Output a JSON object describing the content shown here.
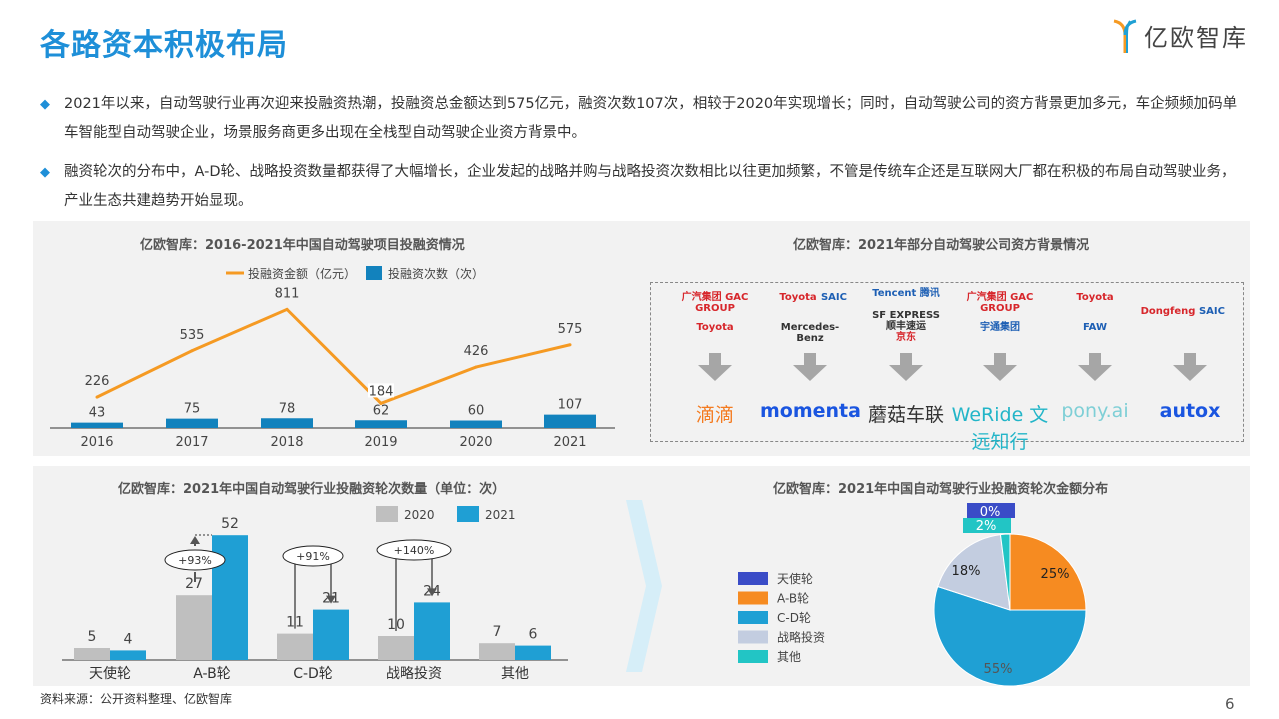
{
  "title": "各路资本积极布局",
  "brand": "亿欧智库",
  "bullets": [
    "2021年以来，自动驾驶行业再次迎来投融资热潮，投融资总金额达到575亿元，融资次数107次，相较于2020年实现增长；同时，自动驾驶公司的资方背景更加多元，车企频频加码单车智能型自动驾驶企业，场景服务商更多出现在全栈型自动驾驶企业资方背景中。",
    "融资轮次的分布中，A-D轮、战略投资数量都获得了大幅增长，企业发起的战略并购与战略投资次数相比以往更加频繁，不管是传统车企还是互联网大厂都在积极的布局自动驾驶业务，产业生态共建趋势开始显现。"
  ],
  "investors_panel": {
    "title": "亿欧智库：2021年部分自动驾驶公司资方背景情况",
    "columns": [
      {
        "investors": [
          "广汽集团 GAC GROUP",
          "Toyota"
        ],
        "company": "滴滴"
      },
      {
        "investors": [
          "Toyota",
          "SAIC",
          "Mercedes-Benz"
        ],
        "company": "momenta"
      },
      {
        "investors": [
          "Tencent 腾讯",
          "SF EXPRESS 顺丰速运",
          "京东"
        ],
        "company": "蘑菇车联"
      },
      {
        "investors": [
          "广汽集团 GAC GROUP",
          "宇通集团"
        ],
        "company": "WeRide 文远知行"
      },
      {
        "investors": [
          "Toyota",
          "FAW"
        ],
        "company": "pony.ai"
      },
      {
        "investors": [
          "Dongfeng",
          "SAIC"
        ],
        "company": "autox"
      }
    ],
    "arrow_color": "#a6a6a6"
  },
  "source": "资料来源：公开资料整理、亿欧智库",
  "page_number": "6",
  "chart_data": [
    {
      "type": "bar+line",
      "title": "亿欧智库：2016-2021年中国自动驾驶项目投融资情况",
      "categories": [
        "2016",
        "2017",
        "2018",
        "2019",
        "2020",
        "2021"
      ],
      "series": [
        {
          "name": "投融资金额（亿元）",
          "type": "line",
          "color": "#f59a23",
          "values": [
            226,
            535,
            811,
            184,
            426,
            575
          ]
        },
        {
          "name": "投融资次数（次）",
          "type": "bar",
          "color": "#1282bd",
          "values": [
            43,
            75,
            78,
            62,
            60,
            107
          ]
        }
      ],
      "legend": "top"
    },
    {
      "type": "bar",
      "title": "亿欧智库：2021年中国自动驾驶行业投融资轮次数量（单位：次）",
      "categories": [
        "天使轮",
        "A-B轮",
        "C-D轮",
        "战略投资",
        "其他"
      ],
      "series": [
        {
          "name": "2020",
          "color": "#bfbfbf",
          "values": [
            5,
            27,
            11,
            10,
            7
          ]
        },
        {
          "name": "2021",
          "color": "#1f9fd4",
          "values": [
            4,
            52,
            21,
            24,
            6
          ]
        }
      ],
      "annotations": [
        {
          "category": "A-B轮",
          "text": "+93%"
        },
        {
          "category": "C-D轮",
          "text": "+91%"
        },
        {
          "category": "战略投资",
          "text": "+140%"
        }
      ],
      "legend": "top-right"
    },
    {
      "type": "pie",
      "title": "亿欧智库：2021年中国自动驾驶行业投融资轮次金额分布",
      "slices": [
        {
          "label": "天使轮",
          "value": 0,
          "display": "0%",
          "color": "#3a4cc7"
        },
        {
          "label": "A-B轮",
          "value": 25,
          "display": "25%",
          "color": "#f68b21"
        },
        {
          "label": "C-D轮",
          "value": 55,
          "display": "55%",
          "color": "#1fa0d4"
        },
        {
          "label": "战略投资",
          "value": 18,
          "display": "18%",
          "color": "#c3cde0"
        },
        {
          "label": "其他",
          "value": 2,
          "display": "2%",
          "color": "#22c5c5"
        }
      ],
      "legend": "left"
    }
  ]
}
